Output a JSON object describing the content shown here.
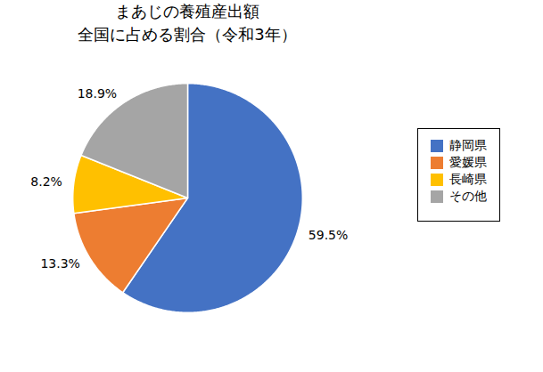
{
  "chart_data": {
    "type": "pie",
    "title": "まあじの養殖産出額",
    "subtitle": "全国に占める割合（令和3年）",
    "categories": [
      "静岡県",
      "愛媛県",
      "長崎県",
      "その他"
    ],
    "values": [
      59.5,
      13.3,
      8.2,
      18.9
    ],
    "value_labels": [
      "59.5%",
      "13.3%",
      "8.2%",
      "18.9%"
    ],
    "colors": [
      "#4472C4",
      "#ED7D31",
      "#FFC000",
      "#A5A5A5"
    ],
    "data_labels": true,
    "legend": "right"
  }
}
